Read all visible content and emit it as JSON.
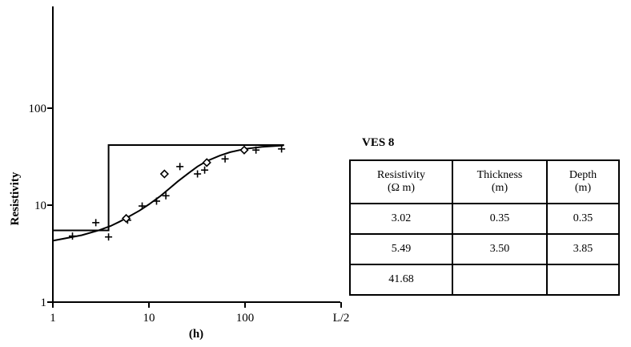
{
  "chart_data": {
    "type": "scatter",
    "title": "VES 8",
    "ylabel": "Resistivity",
    "xlabel": "(h)",
    "x_scale": "log",
    "y_scale": "log",
    "xlim": [
      1,
      1000
    ],
    "ylim": [
      1,
      1000
    ],
    "x_tick_labels": [
      "1",
      "10",
      "100",
      "L/2"
    ],
    "y_tick_labels": [
      "1",
      "10",
      "100"
    ],
    "series": [
      {
        "marker": "plus",
        "x": [
          1.6,
          2.8,
          3.8,
          6,
          8.5,
          12,
          15,
          21,
          32,
          38,
          62,
          130,
          240
        ],
        "y": [
          4.8,
          6.6,
          4.7,
          7,
          9.8,
          11,
          12.5,
          25,
          21,
          23,
          30,
          37,
          38
        ]
      },
      {
        "marker": "diamond",
        "x": [
          5.8,
          14.5,
          40,
          98
        ],
        "y": [
          7.3,
          21,
          27.5,
          37
        ]
      }
    ],
    "model_curve": {
      "x": [
        1,
        3.8,
        3.8,
        255
      ],
      "y": [
        5.49,
        5.49,
        41.68,
        41.68
      ]
    },
    "fit_curve": {
      "x": [
        1,
        2,
        3,
        4,
        5,
        6,
        8,
        10,
        13,
        16,
        20,
        26,
        32,
        40,
        55,
        70,
        100,
        150,
        250
      ],
      "y": [
        4.3,
        4.9,
        5.5,
        6.1,
        6.8,
        7.5,
        8.8,
        10.2,
        12.3,
        14.6,
        17.6,
        21.5,
        25,
        28.5,
        32.5,
        35.2,
        38,
        40,
        41.3
      ]
    }
  },
  "legend_table": {
    "title": "VES 8",
    "headers": [
      {
        "main": "Resistivity",
        "unit": "(Ω m)"
      },
      {
        "main": "Thickness",
        "unit": "(m)"
      },
      {
        "main": "Depth",
        "unit": "(m)"
      }
    ],
    "rows": [
      [
        "3.02",
        "0.35",
        "0.35"
      ],
      [
        "5.49",
        "3.50",
        "3.85"
      ],
      [
        "41.68",
        "",
        ""
      ]
    ]
  }
}
